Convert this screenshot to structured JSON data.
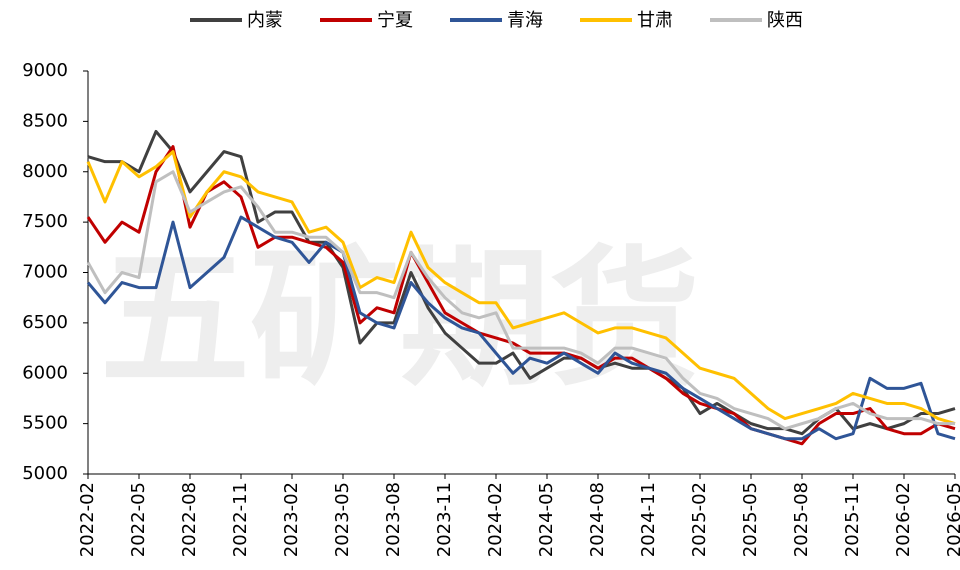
{
  "chart_data": {
    "type": "line",
    "watermark": "五矿期货",
    "categories": [
      "2022-02",
      null,
      null,
      "2022-05",
      null,
      null,
      "2022-08",
      null,
      null,
      "2022-11",
      null,
      null,
      "2023-02",
      null,
      null,
      "2023-05",
      null,
      null,
      "2023-08",
      null,
      null,
      "2023-11",
      null,
      null,
      "2024-02",
      null,
      null,
      "2024-05",
      null,
      null,
      "2024-08",
      null,
      null,
      "2024-11",
      null,
      null,
      "2025-02",
      null,
      null,
      "2025-05",
      null,
      null,
      "2025-08",
      null,
      null,
      "2025-11",
      null,
      null,
      "2026-02",
      null,
      null,
      "2026-05"
    ],
    "series": [
      {
        "name": "内蒙",
        "color": "#404040",
        "values": [
          8150,
          8100,
          8100,
          8000,
          8400,
          8200,
          7800,
          8000,
          8200,
          8150,
          7500,
          7600,
          7600,
          7300,
          7300,
          7050,
          6300,
          6500,
          6500,
          7000,
          6650,
          6400,
          6250,
          6100,
          6100,
          6200,
          5950,
          6050,
          6150,
          6150,
          6050,
          6100,
          6050,
          6050,
          5950,
          5850,
          5600,
          5700,
          5600,
          5500,
          5450,
          5450,
          5400,
          5550,
          5650,
          5450,
          5500,
          5450,
          5500,
          5600,
          5600,
          5650
        ]
      },
      {
        "name": "宁夏",
        "color": "#c00000",
        "values": [
          7550,
          7300,
          7500,
          7400,
          8000,
          8250,
          7450,
          7800,
          7900,
          7750,
          7250,
          7350,
          7350,
          7300,
          7250,
          7100,
          6500,
          6650,
          6600,
          7200,
          6900,
          6600,
          6500,
          6400,
          6350,
          6300,
          6200,
          6200,
          6200,
          6150,
          6050,
          6150,
          6150,
          6050,
          5950,
          5800,
          5700,
          5650,
          5600,
          5450,
          5400,
          5350,
          5300,
          5500,
          5600,
          5600,
          5650,
          5450,
          5400,
          5400,
          5500,
          5450
        ]
      },
      {
        "name": "青海",
        "color": "#2f5597",
        "values": [
          6900,
          6700,
          6900,
          6850,
          6850,
          7500,
          6850,
          7000,
          7150,
          7550,
          7450,
          7350,
          7300,
          7100,
          7300,
          7200,
          6600,
          6500,
          6450,
          6900,
          6700,
          6550,
          6450,
          6400,
          6200,
          6000,
          6150,
          6100,
          6200,
          6100,
          6000,
          6200,
          6100,
          6050,
          6000,
          5850,
          5750,
          5650,
          5550,
          5450,
          5400,
          5350,
          5350,
          5450,
          5350,
          5400,
          5950,
          5850,
          5850,
          5900,
          5400,
          5350
        ]
      },
      {
        "name": "甘肃",
        "color": "#ffc000",
        "values": [
          8100,
          7700,
          8100,
          7950,
          8050,
          8200,
          7550,
          7800,
          8000,
          7950,
          7800,
          7750,
          7700,
          7400,
          7450,
          7300,
          6850,
          6950,
          6900,
          7400,
          7050,
          6900,
          6800,
          6700,
          6700,
          6450,
          6500,
          6550,
          6600,
          6500,
          6400,
          6450,
          6450,
          6400,
          6350,
          6200,
          6050,
          6000,
          5950,
          5800,
          5650,
          5550,
          5600,
          5650,
          5700,
          5800,
          5750,
          5700,
          5700,
          5650,
          5550,
          5500
        ]
      },
      {
        "name": "陕西",
        "color": "#bfbfbf",
        "values": [
          7100,
          6800,
          7000,
          6950,
          7900,
          8000,
          7600,
          7700,
          7800,
          7850,
          7650,
          7400,
          7400,
          7350,
          7350,
          7200,
          6800,
          6800,
          6750,
          7200,
          6950,
          6750,
          6600,
          6550,
          6600,
          6250,
          6250,
          6250,
          6250,
          6200,
          6100,
          6250,
          6250,
          6200,
          6150,
          5950,
          5800,
          5750,
          5650,
          5600,
          5550,
          5450,
          5500,
          5550,
          5650,
          5700,
          5600,
          5550,
          5550,
          5550,
          5500,
          5500
        ]
      }
    ],
    "ylim": [
      5000,
      9000
    ],
    "yticks": [
      5000,
      5500,
      6000,
      6500,
      7000,
      7500,
      8000,
      8500,
      9000
    ],
    "grid": false,
    "legend": "top"
  }
}
